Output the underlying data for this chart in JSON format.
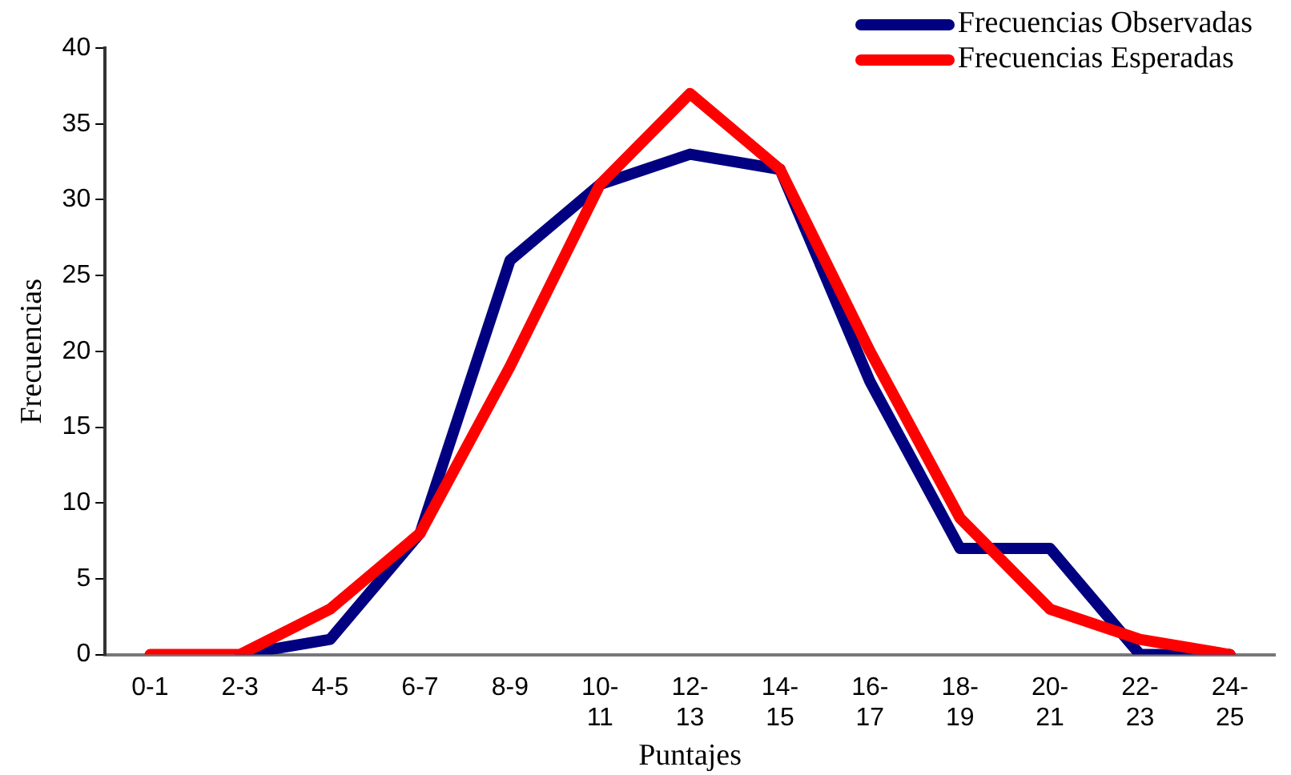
{
  "chart_data": {
    "type": "line",
    "xlabel": "Puntajes",
    "ylabel": "Frecuencias",
    "categories": [
      "0-1",
      "2-3",
      "4-5",
      "6-7",
      "8-9",
      "10- 11",
      "12- 13",
      "14- 15",
      "16- 17",
      "18- 19",
      "20- 21",
      "22- 23",
      "24- 25"
    ],
    "series": [
      {
        "name": "Frecuencias Observadas",
        "color": "#000080",
        "values": [
          null,
          0,
          1,
          8,
          26,
          31,
          33,
          32,
          18,
          7,
          7,
          0,
          0
        ]
      },
      {
        "name": "Frecuencias Esperadas",
        "color": "#ff0000",
        "values": [
          0,
          0,
          3,
          8,
          19,
          31,
          37,
          32,
          20,
          9,
          3,
          1,
          0
        ]
      }
    ],
    "ylim": [
      0,
      40
    ],
    "yticks": [
      0,
      5,
      10,
      15,
      20,
      25,
      30,
      35,
      40
    ],
    "grid": false,
    "legend": "top right",
    "marker": "none",
    "line_style": "solid"
  }
}
